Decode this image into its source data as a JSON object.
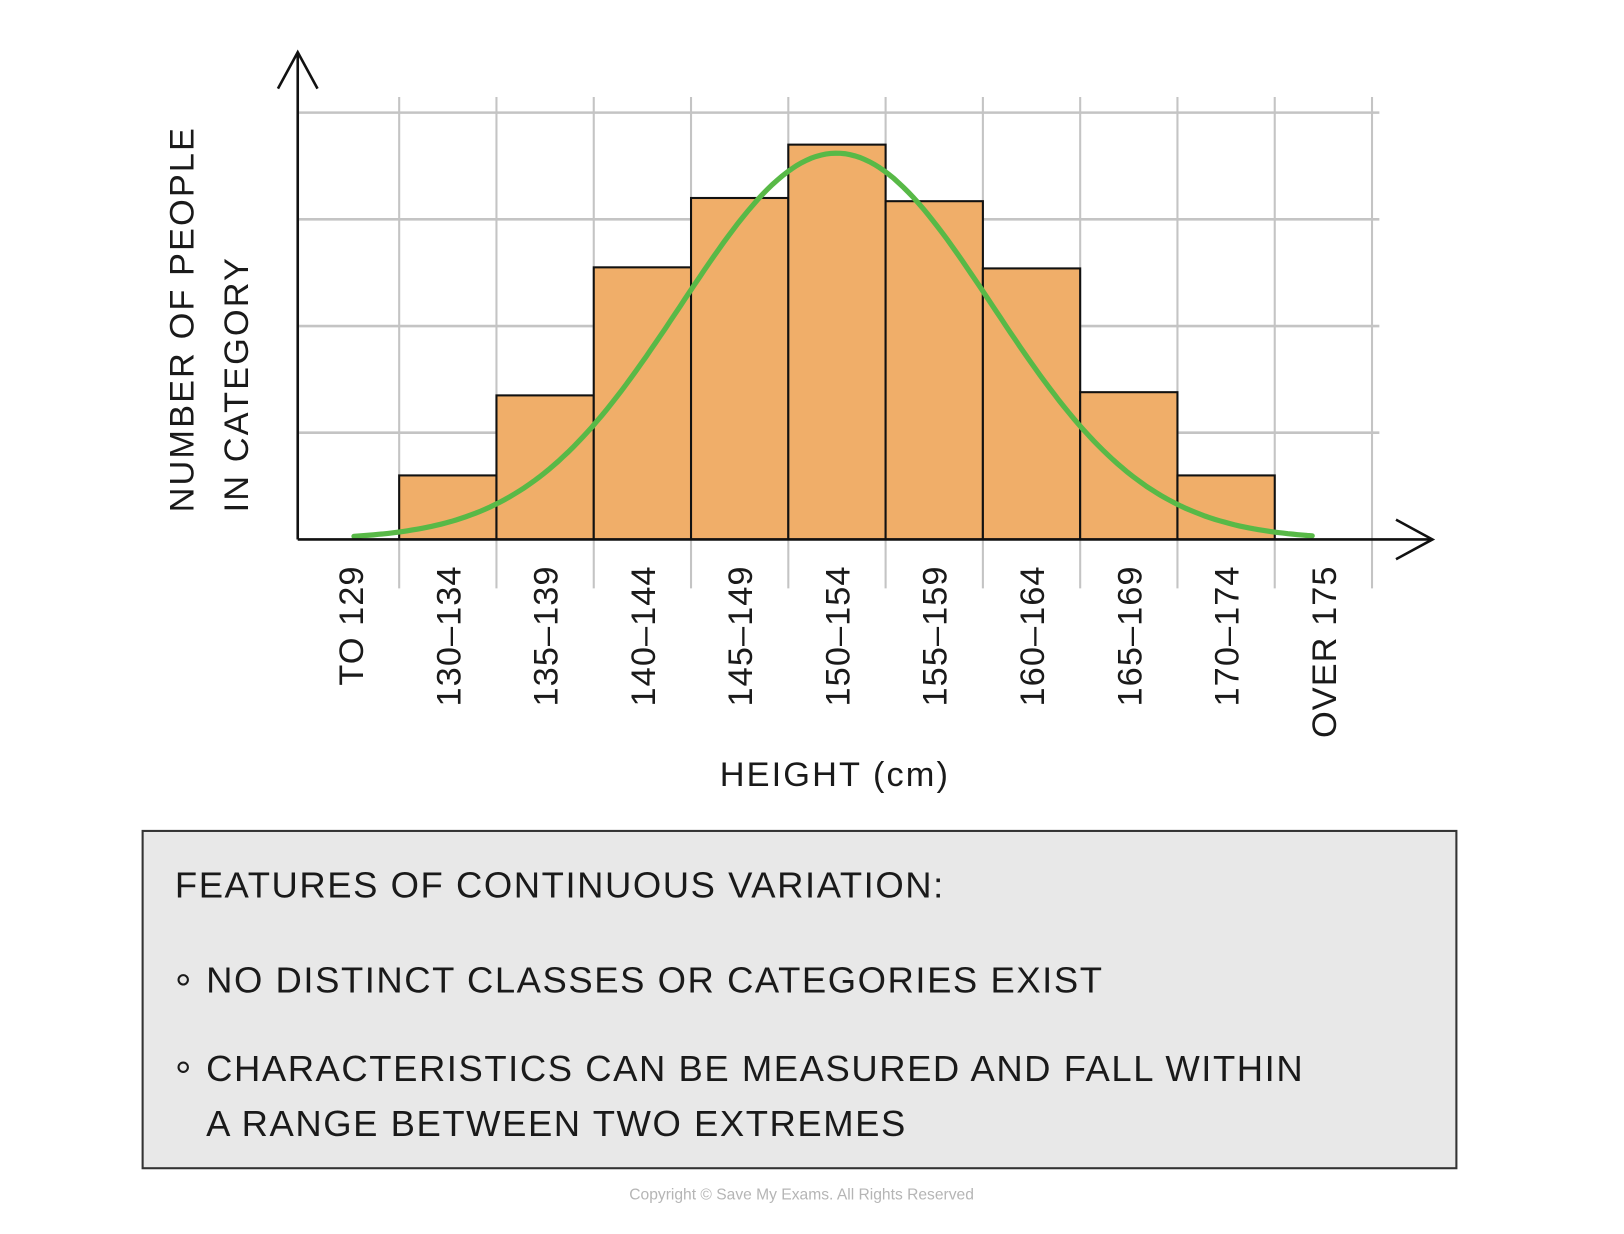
{
  "chart_data": {
    "type": "bar",
    "title": "",
    "xlabel": "HEIGHT (cm)",
    "ylabel_lines": [
      "NUMBER OF PEOPLE",
      "IN CATEGORY"
    ],
    "categories": [
      "TO 129",
      "130–134",
      "135–139",
      "140–144",
      "145–149",
      "150–154",
      "155–159",
      "160–164",
      "165–169",
      "170–174",
      "OVER 175"
    ],
    "values": [
      0,
      0.6,
      1.35,
      2.55,
      3.2,
      3.7,
      3.17,
      2.54,
      1.38,
      0.6,
      0
    ],
    "y_unit_note": "unlabelled axis; values in gridline units",
    "ylim": [
      0,
      4
    ],
    "grid": true,
    "bar_color": "#f0ae69",
    "curve": {
      "type": "normal",
      "mean_cm": 152,
      "sd_cm": 8,
      "peak": 3.62,
      "x_range_cm": [
        127.2,
        176.5
      ],
      "color": "#58b947"
    }
  },
  "features_box": {
    "heading": "FEATURES OF  CONTINUOUS  VARIATION:",
    "bullets": [
      [
        "NO  DISTINCT  CLASSES  OR  CATEGORIES  EXIST"
      ],
      [
        "CHARACTERISTICS  CAN  BE  MEASURED  AND  FALL  WITHIN",
        "A  RANGE  BETWEEN  TWO  EXTREMES"
      ]
    ]
  },
  "copyright": "Copyright © Save My Exams. All Rights Reserved"
}
